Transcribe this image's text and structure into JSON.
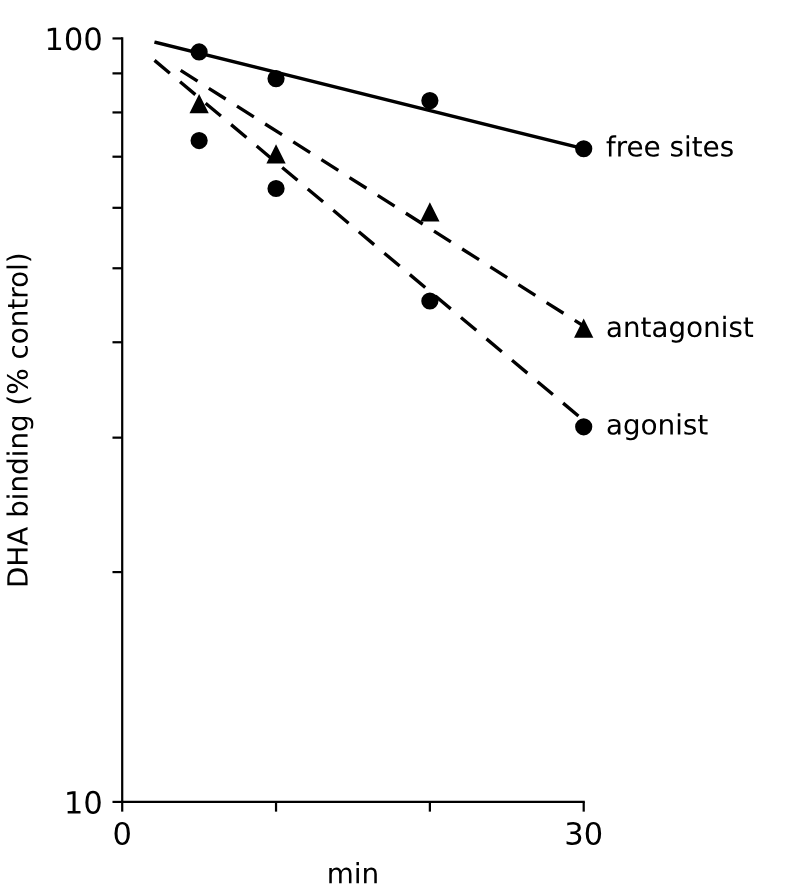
{
  "chart_data": {
    "type": "scatter",
    "xlabel": "min",
    "ylabel": "DHA binding (% control)",
    "log": "y",
    "xlim": [
      0,
      30
    ],
    "ylim": [
      10,
      100
    ],
    "xticks": [
      0,
      {
        "value": 10,
        "label": null
      },
      {
        "value": 20,
        "label": null
      },
      30
    ],
    "yticks": [
      {
        "value": 10,
        "label": "10"
      },
      {
        "value": 20,
        "label": null
      },
      {
        "value": 30,
        "label": null
      },
      {
        "value": 40,
        "label": null
      },
      {
        "value": 50,
        "label": null
      },
      {
        "value": 60,
        "label": null
      },
      {
        "value": 70,
        "label": null
      },
      {
        "value": 80,
        "label": null
      },
      {
        "value": 90,
        "label": null
      },
      {
        "value": 100,
        "label": "100"
      }
    ],
    "grid": false,
    "legend": false,
    "series": [
      {
        "name": "free sites",
        "marker": "circle",
        "color": "#000000",
        "x": [
          5,
          10,
          20,
          30
        ],
        "values": [
          96,
          88.6,
          82.9,
          71.7
        ]
      },
      {
        "name": "antagonist",
        "marker": "triangle",
        "color": "#000000",
        "x": [
          5,
          10,
          20,
          30
        ],
        "values": [
          81.9,
          70.4,
          59.1,
          41.6
        ]
      },
      {
        "name": "agonist",
        "marker": "circle",
        "color": "#000000",
        "x": [
          5,
          10,
          20,
          30
        ],
        "values": [
          73.5,
          63.6,
          45.3,
          31.0
        ]
      },
      {
        "type": "line",
        "line_style": "solid",
        "marker": "none",
        "color": "#000000",
        "x": [
          2.2,
          30
        ],
        "values": [
          98.8,
          71.7
        ]
      },
      {
        "type": "line",
        "line_style": "dashed",
        "marker": "none",
        "color": "#000000",
        "x": [
          3.8,
          30
        ],
        "values": [
          90.8,
          42
        ]
      },
      {
        "type": "line",
        "line_style": "dashed",
        "marker": "none",
        "color": "#000000",
        "x": [
          2.1,
          30
        ],
        "values": [
          93.6,
          31.6
        ]
      }
    ]
  }
}
